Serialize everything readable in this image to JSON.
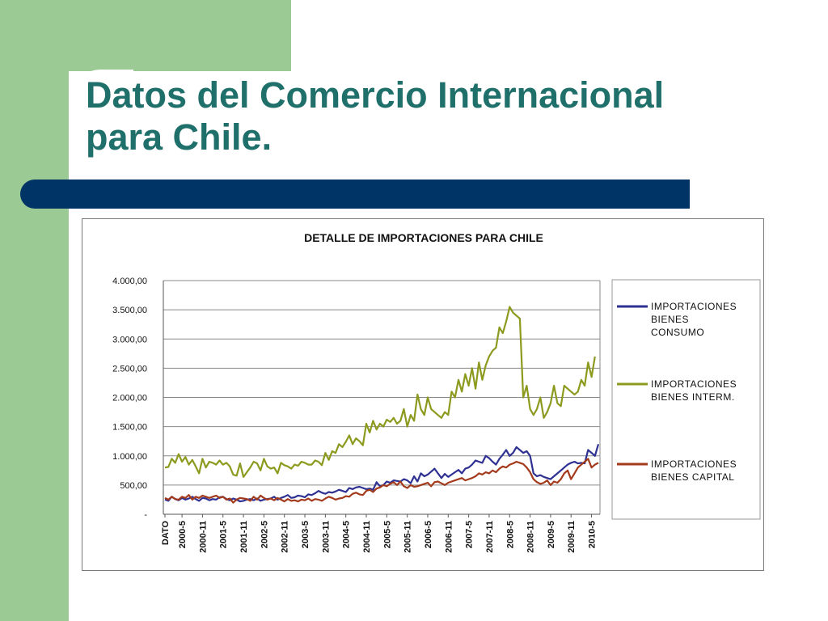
{
  "slide": {
    "title_line1": "Datos del Comercio Internacional",
    "title_line2": "para Chile."
  },
  "chart_data": {
    "type": "line",
    "title": "DETALLE DE IMPORTACIONES PARA CHILE",
    "ylim": [
      0,
      4000
    ],
    "yticks": [
      {
        "value": 0,
        "label": "-"
      },
      {
        "value": 500,
        "label": "500,00"
      },
      {
        "value": 1000,
        "label": "1.000,00"
      },
      {
        "value": 1500,
        "label": "1.500,00"
      },
      {
        "value": 2000,
        "label": "2.000,00"
      },
      {
        "value": 2500,
        "label": "2.500,00"
      },
      {
        "value": 3000,
        "label": "3.000,00"
      },
      {
        "value": 3500,
        "label": "3.500,00"
      },
      {
        "value": 4000,
        "label": "4.000,00"
      }
    ],
    "xticks": [
      {
        "index": 0,
        "label": "DATO"
      },
      {
        "index": 5,
        "label": "2000-5"
      },
      {
        "index": 11,
        "label": "2000-11"
      },
      {
        "index": 17,
        "label": "2001-5"
      },
      {
        "index": 23,
        "label": "2001-11"
      },
      {
        "index": 29,
        "label": "2002-5"
      },
      {
        "index": 35,
        "label": "2002-11"
      },
      {
        "index": 41,
        "label": "2003-5"
      },
      {
        "index": 47,
        "label": "2003-11"
      },
      {
        "index": 53,
        "label": "2004-5"
      },
      {
        "index": 59,
        "label": "2004-11"
      },
      {
        "index": 65,
        "label": "2005-5"
      },
      {
        "index": 71,
        "label": "2005-11"
      },
      {
        "index": 77,
        "label": "2006-5"
      },
      {
        "index": 83,
        "label": "2006-11"
      },
      {
        "index": 89,
        "label": "2007-5"
      },
      {
        "index": 95,
        "label": "2007-11"
      },
      {
        "index": 101,
        "label": "2008-5"
      },
      {
        "index": 107,
        "label": "2008-11"
      },
      {
        "index": 113,
        "label": "2009-5"
      },
      {
        "index": 119,
        "label": "2009-11"
      },
      {
        "index": 125,
        "label": "2010-5"
      }
    ],
    "grid": true,
    "legend_position": "right",
    "series": [
      {
        "name": "IMPORTACIONES BIENES CONSUMO",
        "legend_lines": [
          "IMPORTACIONES",
          "BIENES",
          "CONSUMO"
        ],
        "color": "#2e3192",
        "values": [
          250,
          230,
          300,
          260,
          240,
          280,
          250,
          270,
          300,
          260,
          230,
          280,
          270,
          240,
          260,
          250,
          290,
          300,
          260,
          240,
          270,
          250,
          220,
          230,
          250,
          260,
          240,
          270,
          230,
          250,
          260,
          270,
          300,
          250,
          280,
          300,
          330,
          280,
          290,
          320,
          310,
          290,
          340,
          330,
          360,
          400,
          370,
          350,
          380,
          370,
          390,
          420,
          400,
          380,
          450,
          430,
          460,
          470,
          450,
          430,
          440,
          420,
          550,
          480,
          500,
          560,
          540,
          580,
          570,
          560,
          600,
          580,
          530,
          650,
          560,
          700,
          650,
          680,
          730,
          780,
          700,
          620,
          690,
          640,
          680,
          720,
          760,
          700,
          780,
          800,
          850,
          920,
          900,
          880,
          1000,
          960,
          900,
          850,
          950,
          1020,
          1100,
          1000,
          1050,
          1150,
          1100,
          1050,
          1080,
          1000,
          700,
          650,
          670,
          640,
          620,
          600,
          650,
          700,
          750,
          800,
          850,
          880,
          900,
          870,
          880,
          870,
          1100,
          1050,
          1000,
          1200
        ]
      },
      {
        "name": "IMPORTACIONES BIENES INTERM.",
        "legend_lines": [
          "IMPORTACIONES",
          "BIENES INTERM."
        ],
        "color": "#8c9a1e",
        "values": [
          800,
          810,
          950,
          880,
          1030,
          900,
          980,
          850,
          930,
          820,
          700,
          950,
          800,
          900,
          880,
          850,
          920,
          850,
          880,
          820,
          680,
          660,
          870,
          640,
          720,
          800,
          900,
          870,
          750,
          950,
          820,
          780,
          800,
          700,
          880,
          840,
          820,
          780,
          850,
          830,
          900,
          880,
          850,
          850,
          920,
          900,
          840,
          1050,
          930,
          1080,
          1050,
          1200,
          1150,
          1240,
          1350,
          1200,
          1300,
          1250,
          1180,
          1550,
          1400,
          1600,
          1450,
          1550,
          1500,
          1620,
          1580,
          1650,
          1550,
          1600,
          1800,
          1500,
          1700,
          1600,
          2050,
          1800,
          1700,
          2000,
          1800,
          1750,
          1700,
          1650,
          1750,
          1700,
          2100,
          2000,
          2300,
          2100,
          2400,
          2200,
          2500,
          2150,
          2600,
          2300,
          2550,
          2700,
          2800,
          2850,
          3200,
          3100,
          3300,
          3550,
          3450,
          3400,
          3350,
          2000,
          2200,
          1800,
          1700,
          1800,
          2000,
          1650,
          1750,
          1900,
          2200,
          1900,
          1850,
          2200,
          2150,
          2100,
          2050,
          2100,
          2300,
          2200,
          2600,
          2350,
          2700
        ]
      },
      {
        "name": "IMPORTACIONES BIENES CAPITAL",
        "legend_lines": [
          "IMPORTACIONES",
          "BIENES CAPITAL"
        ],
        "color": "#a33a1c",
        "values": [
          280,
          250,
          300,
          260,
          250,
          300,
          280,
          330,
          250,
          300,
          280,
          320,
          300,
          280,
          300,
          320,
          280,
          300,
          250,
          270,
          200,
          250,
          280,
          270,
          260,
          230,
          300,
          250,
          320,
          280,
          250,
          270,
          240,
          280,
          250,
          220,
          260,
          230,
          240,
          220,
          250,
          240,
          270,
          230,
          260,
          250,
          230,
          270,
          300,
          280,
          250,
          270,
          280,
          310,
          300,
          350,
          370,
          340,
          330,
          400,
          420,
          380,
          440,
          460,
          500,
          480,
          520,
          550,
          500,
          560,
          480,
          450,
          500,
          470,
          480,
          500,
          520,
          540,
          480,
          550,
          560,
          530,
          500,
          540,
          560,
          580,
          600,
          620,
          580,
          600,
          620,
          650,
          700,
          680,
          720,
          700,
          750,
          720,
          780,
          820,
          800,
          850,
          870,
          900,
          880,
          860,
          800,
          720,
          600,
          550,
          520,
          540,
          580,
          500,
          560,
          540,
          600,
          700,
          750,
          600,
          700,
          800,
          850,
          900,
          950,
          800,
          850,
          880
        ]
      }
    ]
  }
}
